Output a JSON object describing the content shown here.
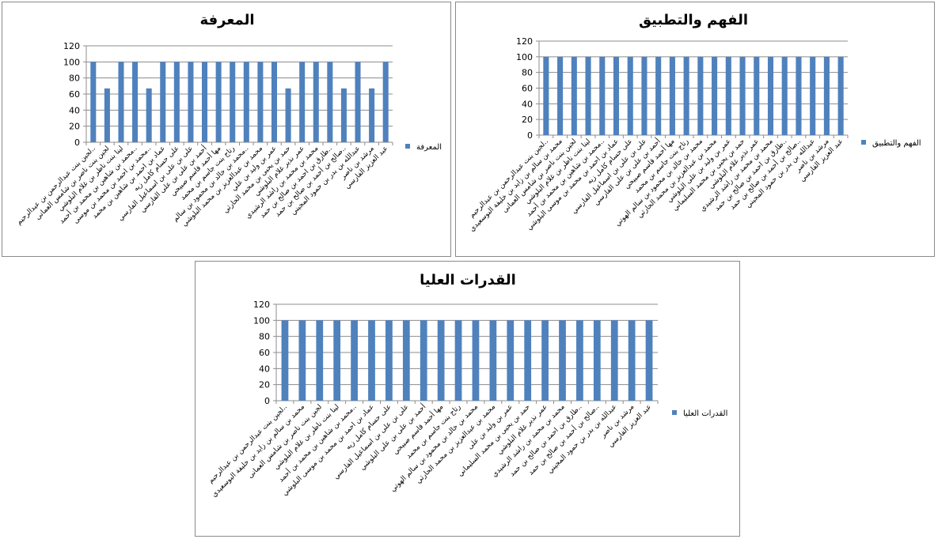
{
  "colors": {
    "bar": "#4f81bd",
    "grid": "#8c8c8c",
    "axis": "#8c8c8c"
  },
  "chart_data": [
    {
      "type": "bar",
      "title": "المعرفة",
      "ylim": [
        0,
        120
      ],
      "yticks": [
        "0",
        "20",
        "40",
        "60",
        "80",
        "100",
        "120"
      ],
      "grid": true,
      "legend_position": "right",
      "categories": [
        "لجين بنت عبدالرحمن بن عبدالرحيم..",
        "لجين بنت ناصر بن شامس العمانى",
        "لينا بنت ناظر بن غلام البلوشي",
        "محمد بن شاهين بن محمد بن أحمد..",
        "محمد بن احمد بن محمد بن موسى..",
        "عماد بن احمد بن شاهين بن محمد",
        "على حسام كامل زيه",
        "على بن على بن اسماعيل الفارسي",
        "أحمد بن على بن على الفارسي",
        "مها أحمد قاسم صبيحي",
        "رتاج بنت جاسم بن محمد",
        "محمد بن خالد بن محمود بن سالم..",
        "محمد بن عبدالعزيز بن محمد البلوشي",
        "عمر بن وليد بن علي",
        "حمد بن يحيى بن محمد الحارثي",
        "عمر نذير غلام البلوشي",
        "محمد بن محمد بن راشد الرشيدي",
        "طارق بن احمد بن صالح بن حمد..",
        "صالح بن أحمد بن صالح بن حمد..",
        "عبدالله بن بدر بن حمود المجيني",
        "مرشد بن ناصر",
        "عبد العزيز الفارسي"
      ],
      "series": [
        {
          "name": "المعرفة",
          "values": [
            100,
            67,
            100,
            100,
            67,
            100,
            100,
            100,
            100,
            100,
            100,
            100,
            100,
            100,
            67,
            100,
            100,
            100,
            67,
            100,
            67,
            100
          ]
        }
      ]
    },
    {
      "type": "bar",
      "title": "الفهم والتطبيق",
      "ylim": [
        0,
        120
      ],
      "yticks": [
        "0",
        "20",
        "40",
        "60",
        "80",
        "100",
        "120"
      ],
      "grid": true,
      "legend_position": "right",
      "categories": [
        "لجين بنت عبدالرحمن بن عبدالرحيم..",
        "محمد بن سالم بن زايد بن خليفة البوسعيدي",
        "لجين بنت ناصر بن شامس العمانى",
        "لينا بنت ناظر بن غلام البلوشي",
        "محمد بن شاهين بن محمد بن أحمد..",
        "عماد بن احمد بن محمد بن موسى البلوشي",
        "على حسام كامل زيه",
        "على بن على بن اسماعيل الفارسي",
        "أحمد بن على بن على الفارسي",
        "مها أحمد قاسم صبيحي",
        "رتاج بنت جاسم بن محمد",
        "محمد بن خالد بن محمود بن سالم الهوتي",
        "محمد بن عبدالعزيز بن محمد الحارثي",
        "عمر بن وليد بن على البلوشي",
        "حمد بن يحيى بن محمد السليماني",
        "عمر نذير غلام البلوشي",
        "محمد بن محمد بن راشد الرشيدي",
        "طارق بن احمد بن صالح بن حمد..",
        "صالح بن أحمد بن صالح بن حمد..",
        "عبدالله بن بدر بن حمود المجيني",
        "مرشد بن ناصر",
        "عبد العزيز الفارسي"
      ],
      "series": [
        {
          "name": "الفهم والتطبيق",
          "values": [
            100,
            100,
            100,
            100,
            100,
            100,
            100,
            100,
            100,
            100,
            100,
            100,
            100,
            100,
            100,
            100,
            100,
            100,
            100,
            100,
            100,
            100
          ]
        }
      ]
    },
    {
      "type": "bar",
      "title": "القدرات العليا",
      "ylim": [
        0,
        120
      ],
      "yticks": [
        "0",
        "20",
        "40",
        "60",
        "80",
        "100",
        "120"
      ],
      "grid": true,
      "legend_position": "right",
      "categories": [
        "لجين بنت عبدالرحمن بن عبدالرحيم..",
        "محمد بن سالم بن زايد بن خليفة البوسعيدي",
        "لجين بنت ناصر بن شامس العمانى",
        "لينا بنت ناظر بن غلام البلوشي",
        "محمد بن شاهين بن محمد بن أحمد..",
        "عماد بن احمد بن محمد بن موسى البلوشي",
        "على حسام كامل زيه",
        "على بن على بن اسماعيل الفارسي",
        "أحمد بن على بن على البلوشي",
        "مها أحمد قاسم صبيحي",
        "رتاج بنت جاسم بن محمد",
        "محمد بن خالد بن محمود بن سالم الهوتي",
        "محمد بن عبدالعزيز بن محمد الحارثي",
        "عمر بن وليد بن على",
        "حمد بن يحيى بن محمد السليماني",
        "عمر نذير غلام البلوشي",
        "محمد بن محمد بن راشد الرشيدي",
        "طارق بن احمد بن صالح بن حمد..",
        "صالح بن أحمد بن صالح بن حمد..",
        "عبدالله بن بدر بن حمود المجيني",
        "مرشد بن ناصر",
        "عبد العزيز الفارسي"
      ],
      "series": [
        {
          "name": "القدرات العليا",
          "values": [
            100,
            100,
            100,
            100,
            100,
            100,
            100,
            100,
            100,
            100,
            100,
            100,
            100,
            100,
            100,
            100,
            100,
            100,
            100,
            100,
            100,
            100
          ]
        }
      ]
    }
  ]
}
